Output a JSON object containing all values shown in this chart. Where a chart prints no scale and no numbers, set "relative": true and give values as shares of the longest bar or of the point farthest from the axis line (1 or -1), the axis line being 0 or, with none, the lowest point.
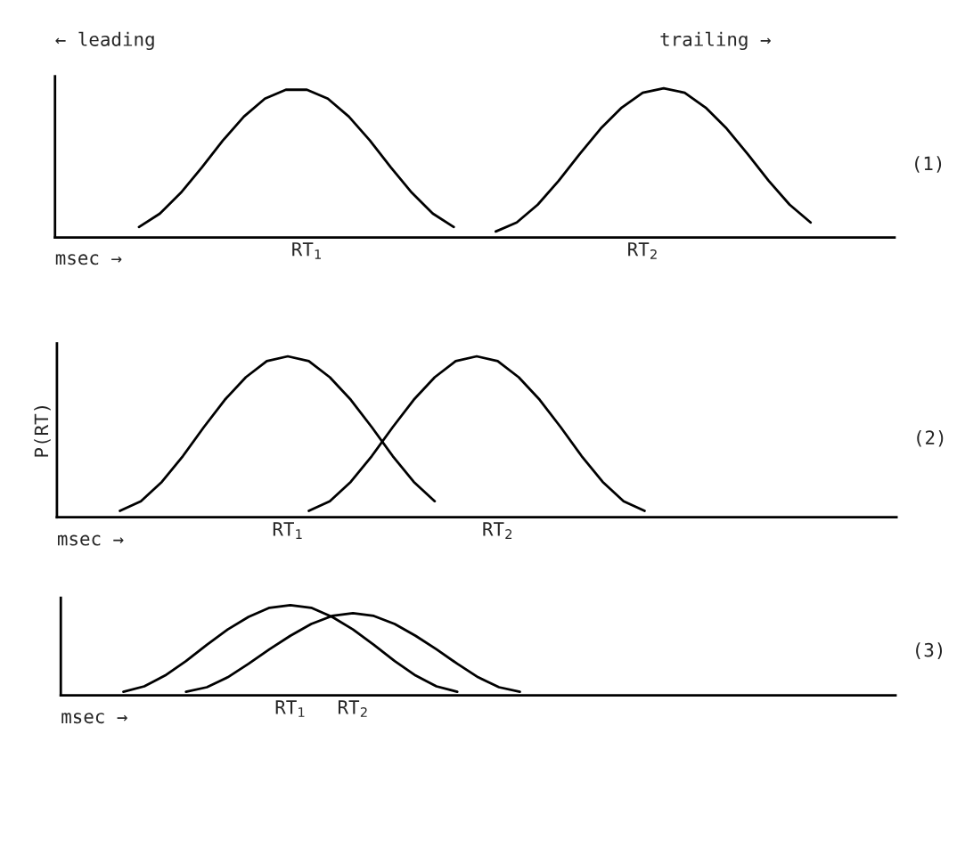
{
  "chart_data": [
    {
      "type": "line",
      "relative": true,
      "tick_labels": "x",
      "xlabel": "msec →",
      "annotations": [
        "← leading",
        "trailing →",
        "(1)"
      ],
      "categories": [
        null,
        null,
        null,
        null,
        null,
        null,
        null,
        null,
        null,
        null,
        null,
        null,
        "RT$_{1}$",
        null,
        null,
        null,
        null,
        null,
        null,
        null,
        null,
        null,
        null,
        null,
        null,
        null,
        null,
        null,
        "RT$_{2}$",
        null,
        null,
        null,
        null,
        null,
        null,
        null,
        null,
        null,
        null,
        null,
        null
      ],
      "series": [
        {
          "color": "#000000",
          "values": [
            null,
            null,
            null,
            null,
            0.07,
            0.16,
            0.3,
            0.47,
            0.65,
            0.81,
            0.93,
            0.99,
            0.99,
            0.93,
            0.81,
            0.65,
            0.47,
            0.3,
            0.16,
            0.07,
            null,
            null,
            null,
            null,
            null,
            null,
            null,
            null,
            null,
            null,
            null,
            null,
            null,
            null,
            null,
            null,
            null,
            null,
            null,
            null,
            null
          ]
        },
        {
          "color": "#000000",
          "values": [
            null,
            null,
            null,
            null,
            null,
            null,
            null,
            null,
            null,
            null,
            null,
            null,
            null,
            null,
            null,
            null,
            null,
            null,
            null,
            null,
            null,
            0.04,
            0.1,
            0.22,
            0.38,
            0.56,
            0.73,
            0.87,
            0.97,
            1.0,
            0.97,
            0.87,
            0.73,
            0.56,
            0.38,
            0.22,
            0.1,
            null,
            null,
            null,
            null
          ]
        }
      ]
    },
    {
      "type": "line",
      "relative": true,
      "tick_labels": "x",
      "xlabel": "msec →",
      "ylabel": "P(RT)",
      "annotations": [
        "(2)"
      ],
      "categories": [
        null,
        null,
        null,
        null,
        null,
        null,
        null,
        null,
        null,
        null,
        null,
        "RT$_{1}$",
        null,
        null,
        null,
        null,
        null,
        null,
        null,
        null,
        null,
        "RT$_{2}$",
        null,
        null,
        null,
        null,
        null,
        null,
        null,
        null,
        null,
        null,
        null,
        null,
        null,
        null,
        null,
        null,
        null,
        null,
        null
      ],
      "series": [
        {
          "color": "#000000",
          "values": [
            null,
            null,
            null,
            0.04,
            0.1,
            0.22,
            0.38,
            0.56,
            0.73,
            0.87,
            0.97,
            1.0,
            0.97,
            0.87,
            0.73,
            0.56,
            0.38,
            0.22,
            0.1,
            null,
            null,
            null,
            null,
            null,
            null,
            null,
            null,
            null,
            null,
            null,
            null,
            null,
            null,
            null,
            null,
            null,
            null,
            null,
            null,
            null,
            null
          ]
        },
        {
          "color": "#000000",
          "values": [
            null,
            null,
            null,
            null,
            null,
            null,
            null,
            null,
            null,
            null,
            null,
            null,
            0.04,
            0.1,
            0.22,
            0.38,
            0.56,
            0.73,
            0.87,
            0.97,
            1.0,
            0.97,
            0.87,
            0.73,
            0.56,
            0.38,
            0.22,
            0.1,
            0.04,
            null,
            null,
            null,
            null,
            null,
            null,
            null,
            null,
            null,
            null,
            null,
            null
          ]
        }
      ]
    },
    {
      "type": "line",
      "relative": true,
      "tick_labels": "x",
      "xlabel": "msec →",
      "annotations": [
        "(3)"
      ],
      "categories": [
        null,
        null,
        null,
        null,
        null,
        null,
        null,
        null,
        null,
        null,
        null,
        "RT$_{1}$",
        null,
        null,
        "RT$_{2}$",
        null,
        null,
        null,
        null,
        null,
        null,
        null,
        null,
        null,
        null,
        null,
        null,
        null,
        null,
        null,
        null,
        null,
        null,
        null,
        null,
        null,
        null,
        null,
        null,
        null,
        null
      ],
      "series": [
        {
          "color": "#000000",
          "values": [
            null,
            null,
            null,
            0.04,
            0.1,
            0.22,
            0.38,
            0.56,
            0.73,
            0.87,
            0.97,
            1.0,
            0.97,
            0.87,
            0.73,
            0.56,
            0.38,
            0.22,
            0.1,
            0.04,
            null,
            null,
            null,
            null,
            null,
            null,
            null,
            null,
            null,
            null,
            null,
            null,
            null,
            null,
            null,
            null,
            null,
            null,
            null,
            null,
            null
          ]
        },
        {
          "color": "#000000",
          "values": [
            null,
            null,
            null,
            null,
            null,
            null,
            0.04,
            0.09,
            0.2,
            0.35,
            0.51,
            0.66,
            0.79,
            0.88,
            0.91,
            0.88,
            0.79,
            0.66,
            0.51,
            0.35,
            0.2,
            0.09,
            0.04,
            null,
            null,
            null,
            null,
            null,
            null,
            null,
            null,
            null,
            null,
            null,
            null,
            null,
            null,
            null,
            null,
            null,
            null
          ]
        }
      ]
    }
  ]
}
